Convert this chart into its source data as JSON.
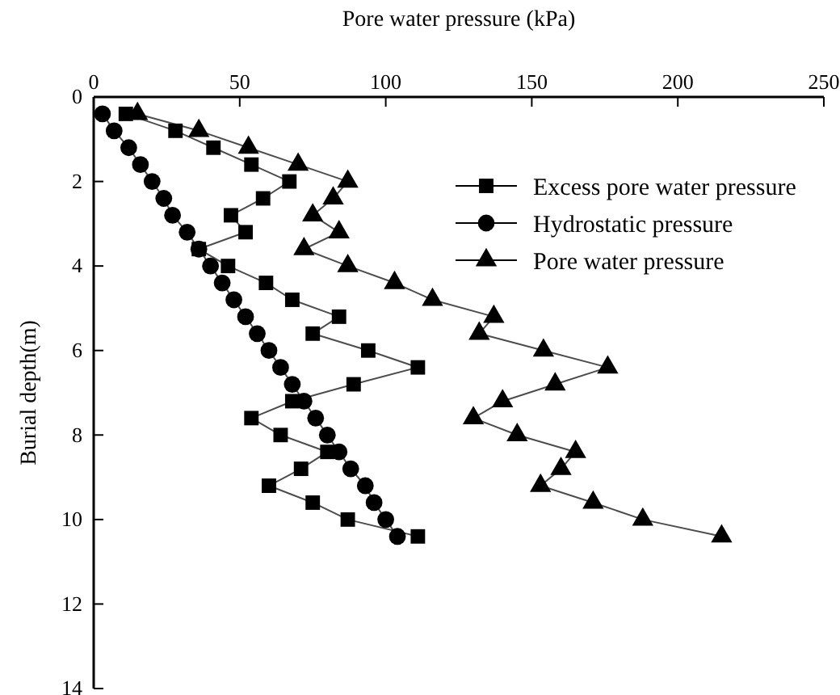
{
  "chart_data": {
    "type": "line",
    "xlabel": "Pore water pressure (kPa)",
    "ylabel": "Burial depth(m)",
    "xlim": [
      0,
      250
    ],
    "xticks": [
      0,
      50,
      100,
      150,
      200,
      250
    ],
    "ylim": [
      14,
      0
    ],
    "yticks": [
      0,
      2,
      4,
      6,
      8,
      10,
      12,
      14
    ],
    "legend": "top right",
    "grid": false,
    "series": [
      {
        "name": "Excess pore water pressure",
        "color": "#000000",
        "marker": "square",
        "x": [
          11,
          28,
          41,
          54,
          67,
          58,
          47,
          52,
          36,
          46,
          59,
          68,
          84,
          75,
          94,
          111,
          89,
          68,
          54,
          64,
          80,
          71,
          60,
          75,
          87,
          111
        ],
        "values": [
          0.4,
          0.8,
          1.2,
          1.6,
          2.0,
          2.4,
          2.8,
          3.2,
          3.6,
          4.0,
          4.4,
          4.8,
          5.2,
          5.6,
          6.0,
          6.4,
          6.8,
          7.2,
          7.6,
          8.0,
          8.4,
          8.8,
          9.2,
          9.6,
          10.0,
          10.4
        ]
      },
      {
        "name": "Hydrostatic pressure",
        "color": "#000000",
        "marker": "circle",
        "x": [
          3,
          7,
          12,
          16,
          20,
          24,
          27,
          32,
          36,
          40,
          44,
          48,
          52,
          56,
          60,
          64,
          68,
          72,
          76,
          80,
          84,
          88,
          93,
          96,
          100,
          104
        ],
        "values": [
          0.4,
          0.8,
          1.2,
          1.6,
          2.0,
          2.4,
          2.8,
          3.2,
          3.6,
          4.0,
          4.4,
          4.8,
          5.2,
          5.6,
          6.0,
          6.4,
          6.8,
          7.2,
          7.6,
          8.0,
          8.4,
          8.8,
          9.2,
          9.6,
          10.0,
          10.4
        ]
      },
      {
        "name": "Pore water pressure",
        "color": "#000000",
        "marker": "triangle",
        "x": [
          15,
          36,
          53,
          70,
          87,
          82,
          75,
          84,
          72,
          87,
          103,
          116,
          137,
          132,
          154,
          176,
          158,
          140,
          130,
          145,
          165,
          160,
          153,
          171,
          188,
          215
        ],
        "values": [
          0.4,
          0.8,
          1.2,
          1.6,
          2.0,
          2.4,
          2.8,
          3.2,
          3.6,
          4.0,
          4.4,
          4.8,
          5.2,
          5.6,
          6.0,
          6.4,
          6.8,
          7.2,
          7.6,
          8.0,
          8.4,
          8.8,
          9.2,
          9.6,
          10.0,
          10.4
        ]
      }
    ]
  }
}
